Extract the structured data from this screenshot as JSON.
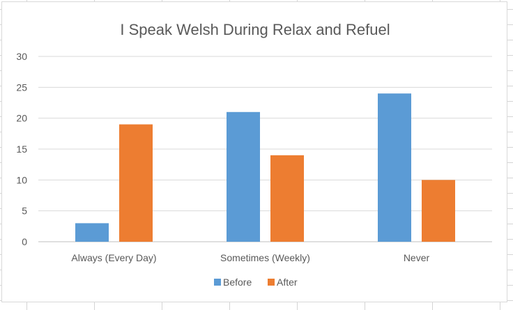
{
  "chart_data": {
    "type": "bar",
    "title": "I Speak Welsh During Relax and Refuel",
    "xlabel": "",
    "ylabel": "",
    "categories": [
      "Always (Every Day)",
      "Sometimes (Weekly)",
      "Never"
    ],
    "series": [
      {
        "name": "Before",
        "values": [
          3,
          21,
          24
        ],
        "color": "#5b9bd5"
      },
      {
        "name": "After",
        "values": [
          19,
          14,
          10
        ],
        "color": "#ed7d31"
      }
    ],
    "ylim": [
      0,
      30
    ],
    "yticks": [
      0,
      5,
      10,
      15,
      20,
      25,
      30
    ],
    "grid": true,
    "legend_position": "bottom"
  }
}
